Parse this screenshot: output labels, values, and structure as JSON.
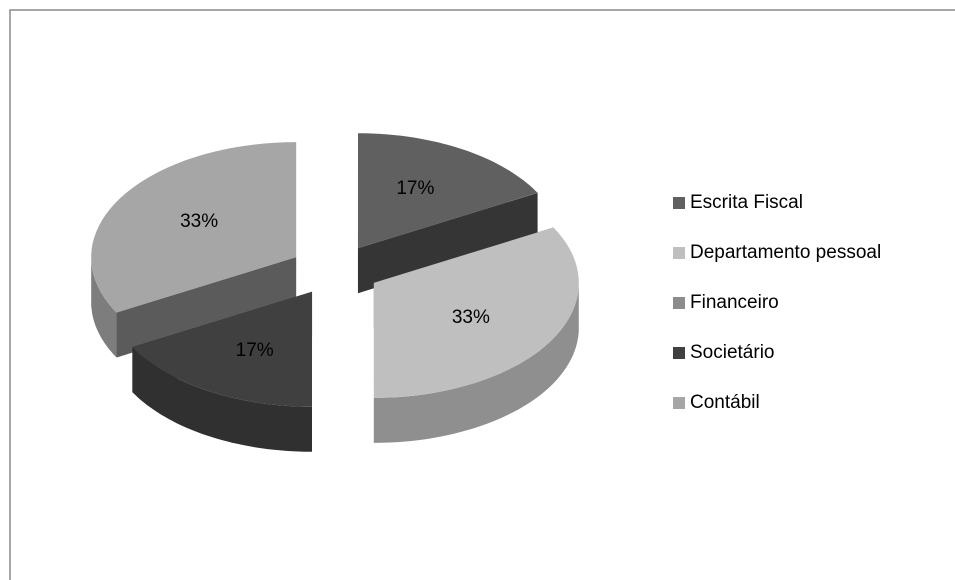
{
  "chart_data": {
    "type": "pie3d",
    "categories": [
      "Escrita Fiscal",
      "Departamento pessoal",
      "Financeiro",
      "Societário",
      "Contábil"
    ],
    "values": [
      17,
      33,
      0,
      17,
      33
    ],
    "value_labels": [
      "17%",
      "33%",
      null,
      "17%",
      "33%"
    ],
    "colors": [
      "#606060",
      "#bfbfbf",
      "#8c8c8c",
      "#404040",
      "#a6a6a6"
    ],
    "legend": "right"
  }
}
